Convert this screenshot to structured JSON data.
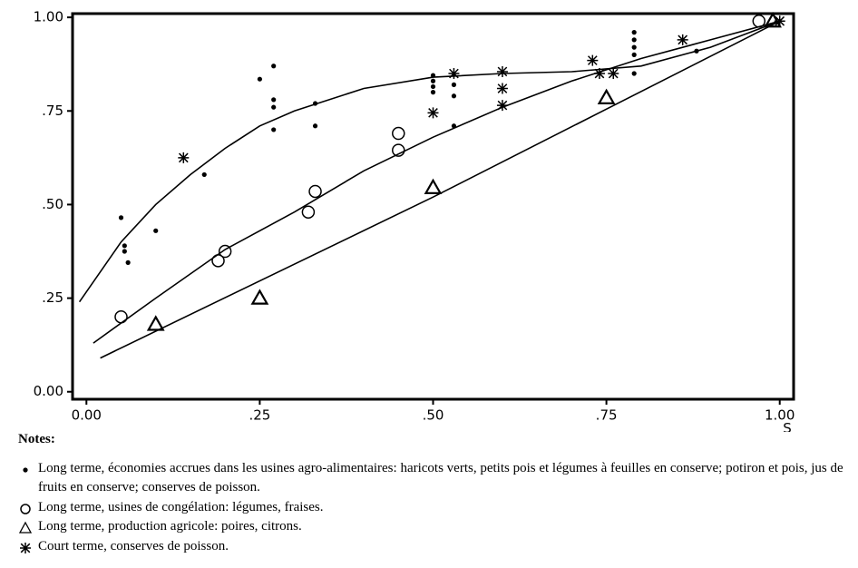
{
  "chart_data": {
    "type": "scatter",
    "xlabel": "S",
    "xlim": [
      -0.02,
      1.02
    ],
    "ylim": [
      -0.02,
      1.01
    ],
    "xticks": [
      {
        "value": 0,
        "label": "0.00"
      },
      {
        "value": 0.25,
        "label": ".25"
      },
      {
        "value": 0.5,
        "label": ".50"
      },
      {
        "value": 0.75,
        "label": ".75"
      },
      {
        "value": 1,
        "label": "1.00"
      }
    ],
    "yticks": [
      {
        "value": 0,
        "label": "0.00"
      },
      {
        "value": 0.25,
        "label": ".25"
      },
      {
        "value": 0.5,
        "label": ".50"
      },
      {
        "value": 0.75,
        "label": ".75"
      },
      {
        "value": 1,
        "label": "1.00"
      }
    ],
    "color": "#000000",
    "notes_title": "Notes:",
    "series": [
      {
        "name": "Long terme, économies accrues dans les usines agro-alimentaires: haricots verts, petits pois et légumes à feuilles en conserve; potiron et pois, jus de fruits en conserve; conserves de poisson.",
        "marker": "dot",
        "x": [
          0.05,
          0.055,
          0.055,
          0.06,
          0.1,
          0.17,
          0.25,
          0.27,
          0.27,
          0.27,
          0.27,
          0.33,
          0.33,
          0.5,
          0.5,
          0.5,
          0.5,
          0.53,
          0.53,
          0.53,
          0.79,
          0.79,
          0.79,
          0.79,
          0.79,
          0.88
        ],
        "values": [
          0.465,
          0.39,
          0.375,
          0.345,
          0.43,
          0.58,
          0.835,
          0.87,
          0.78,
          0.76,
          0.7,
          0.77,
          0.71,
          0.845,
          0.83,
          0.815,
          0.8,
          0.82,
          0.79,
          0.71,
          0.96,
          0.94,
          0.92,
          0.9,
          0.85,
          0.91
        ]
      },
      {
        "name": "Long terme, usines de congélation: légumes, fraises.",
        "marker": "circle",
        "x": [
          0.05,
          0.19,
          0.2,
          0.32,
          0.33,
          0.45,
          0.45,
          0.97
        ],
        "values": [
          0.2,
          0.35,
          0.375,
          0.48,
          0.535,
          0.69,
          0.645,
          0.99
        ]
      },
      {
        "name": "Long terme, production agricole: poires, citrons.",
        "marker": "triangle",
        "x": [
          0.1,
          0.25,
          0.5,
          0.75,
          0.99
        ],
        "values": [
          0.18,
          0.25,
          0.545,
          0.785,
          0.99
        ]
      },
      {
        "name": "Court terme, conserves de poisson.",
        "marker": "star",
        "x": [
          0.14,
          0.5,
          0.53,
          0.6,
          0.6,
          0.6,
          0.73,
          0.74,
          0.76,
          0.86,
          1.0
        ],
        "values": [
          0.625,
          0.745,
          0.85,
          0.855,
          0.81,
          0.765,
          0.885,
          0.85,
          0.85,
          0.94,
          0.99
        ]
      }
    ],
    "curves": [
      {
        "x": [
          -0.01,
          0.05,
          0.1,
          0.15,
          0.2,
          0.25,
          0.3,
          0.4,
          0.5,
          0.6,
          0.7,
          0.8,
          0.9,
          1.0
        ],
        "values": [
          0.24,
          0.4,
          0.5,
          0.58,
          0.65,
          0.71,
          0.75,
          0.81,
          0.84,
          0.85,
          0.855,
          0.87,
          0.92,
          0.99
        ]
      },
      {
        "x": [
          0.01,
          0.1,
          0.2,
          0.3,
          0.4,
          0.5,
          0.6,
          0.7,
          0.8,
          0.9,
          1.0
        ],
        "values": [
          0.13,
          0.25,
          0.38,
          0.48,
          0.59,
          0.68,
          0.76,
          0.83,
          0.89,
          0.94,
          0.99
        ]
      },
      {
        "x": [
          0.02,
          0.5,
          1.0
        ],
        "values": [
          0.09,
          0.52,
          0.99
        ]
      }
    ]
  }
}
